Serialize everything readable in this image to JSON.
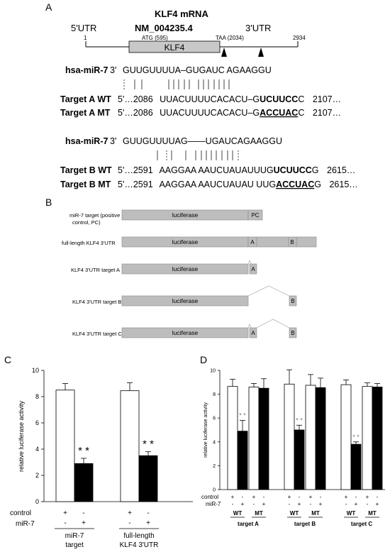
{
  "panels": {
    "A": "A",
    "B": "B",
    "C": "C",
    "D": "D"
  },
  "panelA": {
    "title": "KLF4 mRNA",
    "accession": "NM_004235.4",
    "utr5": "5'UTR",
    "utr3": "3'UTR",
    "pos_start": "1",
    "pos_end": "2934",
    "atg": "ATG (595)",
    "taa": "TAA (2034)",
    "cds": "KLF4",
    "mirA": {
      "label": "hsa-miR-7",
      "end": "3'",
      "seq": "GUUGUUUUA–GUGAUC AGAAGGU"
    },
    "pairA": "┆ | |     | | | | | |  | | | | | | |",
    "targetA_wt": {
      "label": "Target A WT",
      "pre": "5'…2086",
      "seq_plain": "UUACUUUUCACACU–G",
      "seq_bold": "UCUUCC",
      "seq_tail": "C",
      "post": "2107…"
    },
    "targetA_mt": {
      "label": "Target A MT",
      "pre": "5'…2086",
      "seq_plain": "UUACUUUUCACACU–G",
      "seq_bold": "ACCUAC",
      "seq_tail": "C",
      "post": "2107…"
    },
    "mirB": {
      "label": "hsa-miR-7",
      "end": "3'",
      "seq": "GUUGUUUUAG——UGAUCAGAAGGU"
    },
    "targetB_wt": {
      "label": "Target B WT",
      "pre": "5'…2591",
      "seq_plain": "AAGGAA AAUCUAUAUUUG",
      "seq_bold": "UCUUCC",
      "seq_tail": "G",
      "post": "2615…"
    },
    "targetB_mt": {
      "label": "Target B MT",
      "pre": "5'…2591",
      "seq_plain": "AAGGAA AAUCUAUAU UUG",
      "seq_bold": "ACCUAC",
      "seq_tail": "G",
      "post": "2615…"
    }
  },
  "panelB": {
    "constructs": [
      {
        "label1": "miR-7 target (positive",
        "label2": "control, PC)",
        "luc": "luciferase",
        "tag": "PC"
      },
      {
        "label1": "full-length KLF4 3'UTR",
        "luc": "luciferase",
        "tagA": "A",
        "tagB": "B"
      },
      {
        "label1": "KLF4 3'UTR target A",
        "luc": "luciferase",
        "tag": "A"
      },
      {
        "label1": "KLF4 3'UTR target B",
        "luc": "luciferase",
        "tag": "B"
      },
      {
        "label1": "KLF4 3'UTR target C",
        "luc": "luciferase",
        "tagA": "A",
        "tagB": "B"
      }
    ]
  },
  "chart_data": [
    {
      "type": "bar",
      "panel": "C",
      "ylabel": "relative luciferase activity",
      "ylim": [
        0,
        10
      ],
      "yticks": [
        "0",
        "2",
        "4",
        "6",
        "8",
        "10"
      ],
      "groups": [
        "miR-7 target",
        "full-length KLF4 3'UTR"
      ],
      "group_lines": [
        [
          "miR-7",
          "target"
        ],
        [
          "full-length",
          "KLF4 3'UTR"
        ]
      ],
      "series": [
        {
          "name": "control",
          "values": [
            8.5,
            8.45
          ],
          "errors": [
            0.5,
            0.6
          ]
        },
        {
          "name": "miR-7",
          "values": [
            2.9,
            3.5
          ],
          "errors": [
            0.4,
            0.3
          ]
        }
      ],
      "signif": [
        "* *",
        "* *"
      ],
      "row_labels": [
        "control",
        "miR-7"
      ],
      "row_signs": [
        [
          "+",
          "-",
          "+",
          "-"
        ],
        [
          "-",
          "+",
          "-",
          "+"
        ]
      ],
      "colors": {
        "control": "#ffffff",
        "miR-7": "#000000"
      }
    },
    {
      "type": "bar",
      "panel": "D",
      "ylabel": "relative luciferase activity",
      "ylim": [
        0,
        10
      ],
      "yticks": [
        "0",
        "2",
        "4",
        "6",
        "8",
        "10"
      ],
      "groups": [
        "target A",
        "target B",
        "target C"
      ],
      "subgroups": [
        "WT",
        "MT"
      ],
      "values": [
        [
          8.65,
          4.9,
          8.6,
          8.5
        ],
        [
          8.85,
          5.0,
          8.75,
          8.55
        ],
        [
          8.8,
          3.8,
          8.65,
          8.6
        ]
      ],
      "errors": [
        [
          0.6,
          0.9,
          0.3,
          0.8
        ],
        [
          1.2,
          0.4,
          0.9,
          0.8
        ],
        [
          0.4,
          0.2,
          0.3,
          0.3
        ]
      ],
      "signif": [
        "* *",
        "* *",
        "* *"
      ],
      "row_labels": [
        "control",
        "miR-7"
      ],
      "row_signs": [
        [
          "+",
          "-",
          "+",
          "-"
        ],
        [
          "-",
          "+",
          "-",
          "+"
        ]
      ],
      "colors": {
        "control": "#ffffff",
        "miR-7": "#000000"
      }
    }
  ]
}
